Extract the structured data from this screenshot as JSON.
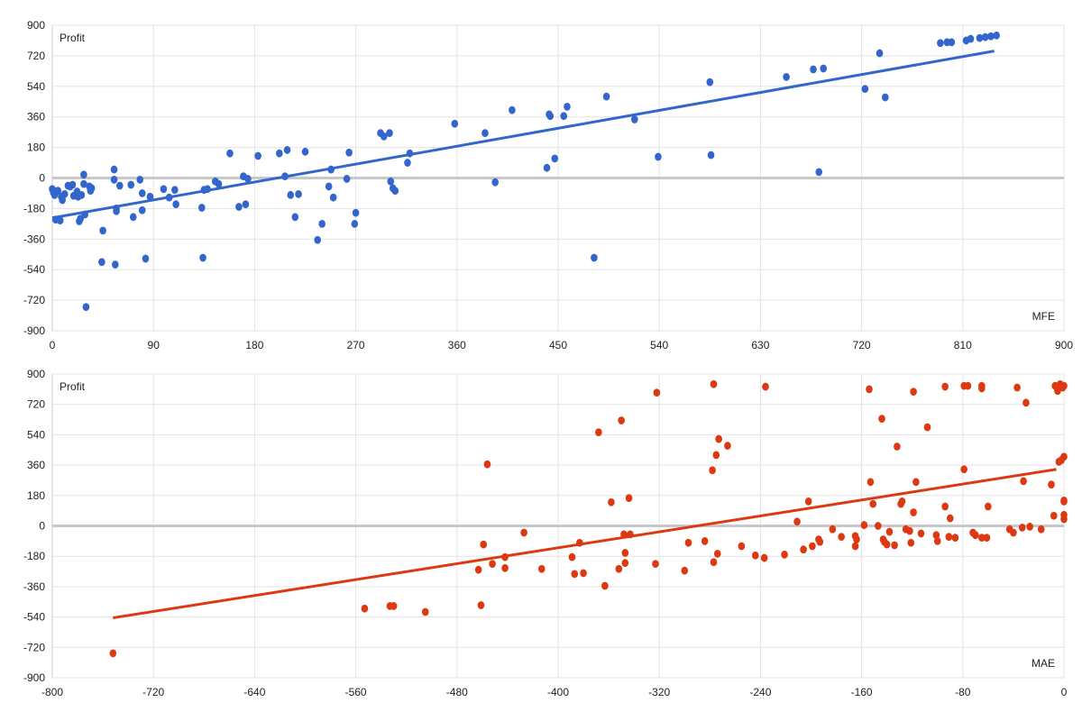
{
  "chart_data": [
    {
      "type": "scatter",
      "title": "",
      "xlabel": "MFE",
      "ylabel": "Profit",
      "xlim": [
        0,
        900
      ],
      "ylim": [
        -900,
        900
      ],
      "xticks": [
        0,
        90,
        180,
        270,
        360,
        450,
        540,
        630,
        720,
        810,
        900
      ],
      "yticks": [
        900,
        720,
        540,
        360,
        180,
        0,
        -180,
        -360,
        -540,
        -720,
        -900
      ],
      "grid": true,
      "color": "#3366cc",
      "trendline": {
        "x": [
          0,
          838
        ],
        "y": [
          -235,
          748
        ]
      },
      "points": [
        [
          0,
          -65
        ],
        [
          1,
          -85
        ],
        [
          2,
          -100
        ],
        [
          3,
          -245
        ],
        [
          5,
          -75
        ],
        [
          7,
          -250
        ],
        [
          8,
          -110
        ],
        [
          9,
          -130
        ],
        [
          11,
          -95
        ],
        [
          14,
          -45
        ],
        [
          16,
          -50
        ],
        [
          18,
          -40
        ],
        [
          19,
          -105
        ],
        [
          22,
          -80
        ],
        [
          23,
          -110
        ],
        [
          24,
          -255
        ],
        [
          25,
          -240
        ],
        [
          26,
          -100
        ],
        [
          28,
          -35
        ],
        [
          28,
          20
        ],
        [
          29,
          -215
        ],
        [
          30,
          -760
        ],
        [
          33,
          -50
        ],
        [
          34,
          -75
        ],
        [
          35,
          -60
        ],
        [
          44,
          -495
        ],
        [
          45,
          -310
        ],
        [
          55,
          -10
        ],
        [
          55,
          50
        ],
        [
          56,
          -510
        ],
        [
          57,
          -180
        ],
        [
          57,
          -195
        ],
        [
          60,
          -45
        ],
        [
          70,
          -40
        ],
        [
          72,
          -230
        ],
        [
          78,
          -10
        ],
        [
          80,
          -90
        ],
        [
          80,
          -190
        ],
        [
          83,
          -475
        ],
        [
          87,
          -110
        ],
        [
          99,
          -65
        ],
        [
          104,
          -115
        ],
        [
          109,
          -70
        ],
        [
          110,
          -155
        ],
        [
          133,
          -175
        ],
        [
          134,
          -470
        ],
        [
          135,
          -70
        ],
        [
          138,
          -65
        ],
        [
          145,
          -20
        ],
        [
          148,
          -35
        ],
        [
          158,
          145
        ],
        [
          166,
          -170
        ],
        [
          170,
          10
        ],
        [
          172,
          -155
        ],
        [
          174,
          -5
        ],
        [
          183,
          130
        ],
        [
          202,
          145
        ],
        [
          207,
          10
        ],
        [
          209,
          165
        ],
        [
          212,
          -100
        ],
        [
          216,
          -230
        ],
        [
          219,
          -95
        ],
        [
          225,
          155
        ],
        [
          236,
          -365
        ],
        [
          240,
          -270
        ],
        [
          246,
          -50
        ],
        [
          248,
          50
        ],
        [
          250,
          -115
        ],
        [
          262,
          -5
        ],
        [
          264,
          150
        ],
        [
          269,
          -270
        ],
        [
          270,
          -205
        ],
        [
          292,
          265
        ],
        [
          295,
          245
        ],
        [
          300,
          265
        ],
        [
          301,
          -20
        ],
        [
          303,
          -60
        ],
        [
          305,
          -75
        ],
        [
          316,
          90
        ],
        [
          318,
          145
        ],
        [
          358,
          320
        ],
        [
          385,
          265
        ],
        [
          394,
          -25
        ],
        [
          409,
          400
        ],
        [
          440,
          60
        ],
        [
          442,
          375
        ],
        [
          443,
          365
        ],
        [
          447,
          115
        ],
        [
          455,
          365
        ],
        [
          458,
          420
        ],
        [
          482,
          -470
        ],
        [
          493,
          480
        ],
        [
          518,
          345
        ],
        [
          539,
          125
        ],
        [
          585,
          565
        ],
        [
          586,
          135
        ],
        [
          653,
          595
        ],
        [
          677,
          640
        ],
        [
          682,
          35
        ],
        [
          686,
          645
        ],
        [
          723,
          525
        ],
        [
          736,
          735
        ],
        [
          741,
          475
        ],
        [
          790,
          795
        ],
        [
          796,
          800
        ],
        [
          800,
          800
        ],
        [
          813,
          810
        ],
        [
          817,
          820
        ],
        [
          825,
          825
        ],
        [
          830,
          830
        ],
        [
          835,
          835
        ],
        [
          840,
          840
        ]
      ]
    },
    {
      "type": "scatter",
      "title": "",
      "xlabel": "MAE",
      "ylabel": "Profit",
      "xlim": [
        -800,
        0
      ],
      "ylim": [
        -900,
        900
      ],
      "xticks": [
        -800,
        -720,
        -640,
        -560,
        -480,
        -400,
        -320,
        -240,
        -160,
        -80,
        0
      ],
      "yticks": [
        900,
        720,
        540,
        360,
        180,
        0,
        -180,
        -360,
        -540,
        -720,
        -900
      ],
      "grid": true,
      "color": "#dc3912",
      "trendline": {
        "x": [
          -752,
          -6
        ],
        "y": [
          -545,
          335
        ]
      },
      "points": [
        [
          -752,
          -755
        ],
        [
          -553,
          -490
        ],
        [
          -533,
          -475
        ],
        [
          -530,
          -475
        ],
        [
          -505,
          -510
        ],
        [
          -463,
          -260
        ],
        [
          -461,
          -470
        ],
        [
          -459,
          -110
        ],
        [
          -456,
          365
        ],
        [
          -452,
          -225
        ],
        [
          -442,
          -250
        ],
        [
          -442,
          -185
        ],
        [
          -427,
          -40
        ],
        [
          -413,
          -255
        ],
        [
          -389,
          -185
        ],
        [
          -387,
          -285
        ],
        [
          -383,
          -100
        ],
        [
          -380,
          -280
        ],
        [
          -368,
          555
        ],
        [
          -363,
          -355
        ],
        [
          -358,
          140
        ],
        [
          -352,
          -255
        ],
        [
          -350,
          625
        ],
        [
          -348,
          -50
        ],
        [
          -347,
          -160
        ],
        [
          -347,
          -220
        ],
        [
          -344,
          165
        ],
        [
          -343,
          -50
        ],
        [
          -323,
          -225
        ],
        [
          -322,
          790
        ],
        [
          -300,
          -265
        ],
        [
          -297,
          -100
        ],
        [
          -284,
          -90
        ],
        [
          -278,
          330
        ],
        [
          -277,
          -215
        ],
        [
          -277,
          840
        ],
        [
          -275,
          420
        ],
        [
          -274,
          -165
        ],
        [
          -273,
          515
        ],
        [
          -266,
          475
        ],
        [
          -255,
          -120
        ],
        [
          -244,
          -175
        ],
        [
          -237,
          -190
        ],
        [
          -236,
          825
        ],
        [
          -221,
          -170
        ],
        [
          -211,
          25
        ],
        [
          -206,
          -140
        ],
        [
          -202,
          145
        ],
        [
          -199,
          -120
        ],
        [
          -194,
          -80
        ],
        [
          -193,
          -95
        ],
        [
          -183,
          -20
        ],
        [
          -176,
          -65
        ],
        [
          -165,
          -60
        ],
        [
          -165,
          -120
        ],
        [
          -164,
          -80
        ],
        [
          -158,
          5
        ],
        [
          -154,
          810
        ],
        [
          -153,
          260
        ],
        [
          -151,
          130
        ],
        [
          -147,
          0
        ],
        [
          -144,
          635
        ],
        [
          -143,
          -80
        ],
        [
          -142,
          -95
        ],
        [
          -140,
          -110
        ],
        [
          -138,
          -35
        ],
        [
          -134,
          -115
        ],
        [
          -132,
          470
        ],
        [
          -129,
          130
        ],
        [
          -128,
          145
        ],
        [
          -125,
          -20
        ],
        [
          -122,
          -30
        ],
        [
          -121,
          -100
        ],
        [
          -119,
          795
        ],
        [
          -119,
          80
        ],
        [
          -117,
          260
        ],
        [
          -113,
          -45
        ],
        [
          -108,
          585
        ],
        [
          -101,
          -55
        ],
        [
          -100,
          -90
        ],
        [
          -94,
          115
        ],
        [
          -94,
          825
        ],
        [
          -91,
          -65
        ],
        [
          -90,
          45
        ],
        [
          -86,
          -70
        ],
        [
          -79,
          830
        ],
        [
          -79,
          335
        ],
        [
          -76,
          830
        ],
        [
          -72,
          -40
        ],
        [
          -70,
          -55
        ],
        [
          -65,
          -70
        ],
        [
          -65,
          815
        ],
        [
          -65,
          830
        ],
        [
          -61,
          -70
        ],
        [
          -60,
          115
        ],
        [
          -43,
          -20
        ],
        [
          -40,
          -40
        ],
        [
          -37,
          820
        ],
        [
          -33,
          -10
        ],
        [
          -32,
          265
        ],
        [
          -30,
          730
        ],
        [
          -27,
          -5
        ],
        [
          -18,
          -20
        ],
        [
          -10,
          245
        ],
        [
          -8,
          60
        ],
        [
          -7,
          830
        ],
        [
          -5,
          810
        ],
        [
          -5,
          800
        ],
        [
          -4,
          380
        ],
        [
          -3,
          840
        ],
        [
          -2,
          390
        ],
        [
          -1,
          820
        ],
        [
          0,
          830
        ],
        [
          0,
          150
        ],
        [
          0,
          145
        ],
        [
          0,
          65
        ],
        [
          0,
          40
        ],
        [
          0,
          410
        ]
      ]
    }
  ]
}
